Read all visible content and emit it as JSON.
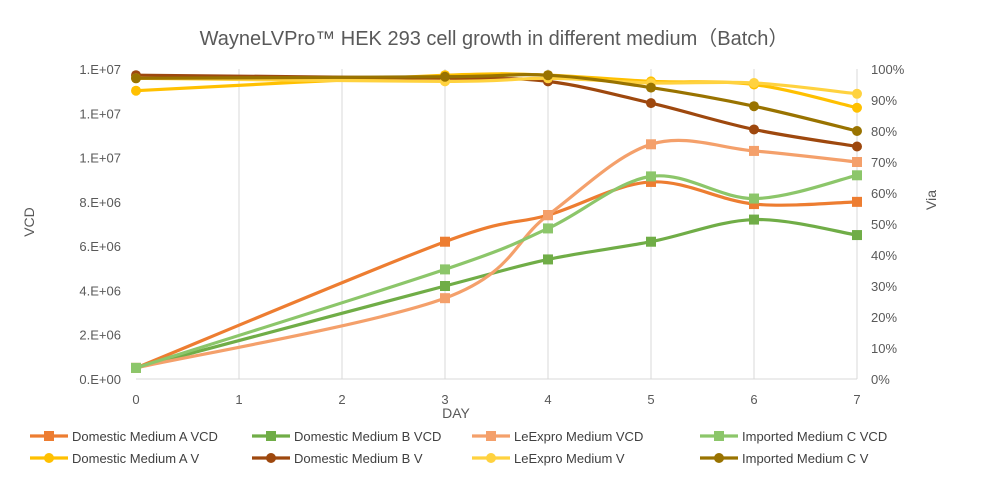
{
  "chart_data": {
    "type": "line",
    "title": "WayneLVPro™ HEK 293 cell growth in different medium（Batch）",
    "xlabel": "DAY",
    "ylabel": "VCD",
    "y2label": "Via",
    "x": [
      0,
      1,
      2,
      3,
      4,
      5,
      6,
      7
    ],
    "x_ticks": [
      "0",
      "1",
      "2",
      "3",
      "4",
      "5",
      "6",
      "7"
    ],
    "xlim": [
      0,
      7
    ],
    "ylim": [
      0,
      14000000
    ],
    "y2lim": [
      0,
      100
    ],
    "y_ticks": [
      {
        "value": 0,
        "label": "0.E+00"
      },
      {
        "value": 2000000,
        "label": "2.E+06"
      },
      {
        "value": 4000000,
        "label": "4.E+06"
      },
      {
        "value": 6000000,
        "label": "6.E+06"
      },
      {
        "value": 8000000,
        "label": "8.E+06"
      },
      {
        "value": 10000000,
        "label": "1.E+07"
      },
      {
        "value": 12000000,
        "label": "1.E+07"
      },
      {
        "value": 14000000,
        "label": "1.E+07"
      }
    ],
    "y2_ticks": [
      {
        "value": 0,
        "label": "0%"
      },
      {
        "value": 10,
        "label": "10%"
      },
      {
        "value": 20,
        "label": "20%"
      },
      {
        "value": 30,
        "label": "30%"
      },
      {
        "value": 40,
        "label": "40%"
      },
      {
        "value": 50,
        "label": "50%"
      },
      {
        "value": 60,
        "label": "60%"
      },
      {
        "value": 70,
        "label": "70%"
      },
      {
        "value": 80,
        "label": "80%"
      },
      {
        "value": 90,
        "label": "90%"
      },
      {
        "value": 100,
        "label": "100%"
      }
    ],
    "grid": "vertical",
    "legend_position": "bottom",
    "series": [
      {
        "name": "Domestic Medium A  VCD",
        "axis": "left",
        "marker": "square",
        "color": "#ED7D31",
        "x": [
          0,
          3,
          4,
          5,
          6,
          7
        ],
        "values": [
          500000,
          6200000,
          7400000,
          8900000,
          7900000,
          8000000
        ]
      },
      {
        "name": "Domestic Medium B  VCD",
        "axis": "left",
        "marker": "square",
        "color": "#70AD47",
        "x": [
          0,
          3,
          4,
          5,
          6,
          7
        ],
        "values": [
          500000,
          4200000,
          5400000,
          6200000,
          7200000,
          6500000
        ]
      },
      {
        "name": "LeExpro Medium VCD",
        "axis": "left",
        "marker": "square",
        "color": "#F4A06B",
        "x": [
          0,
          3,
          4,
          5,
          6,
          7
        ],
        "values": [
          500000,
          3650000,
          7400000,
          10600000,
          10300000,
          9800000
        ]
      },
      {
        "name": "Imported Medium C  VCD",
        "axis": "left",
        "marker": "square",
        "color": "#8CC66A",
        "x": [
          0,
          3,
          4,
          5,
          6,
          7
        ],
        "values": [
          500000,
          4950000,
          6800000,
          9150000,
          8150000,
          9200000
        ]
      },
      {
        "name": "Domestic Medium A  V",
        "axis": "right",
        "marker": "circle",
        "color": "#FFC000",
        "x": [
          0,
          3,
          4,
          5,
          6,
          7
        ],
        "values": [
          93,
          98,
          98,
          96,
          95,
          87.5
        ]
      },
      {
        "name": "Domestic Medium B  V",
        "axis": "right",
        "marker": "circle",
        "color": "#9E480E",
        "x": [
          0,
          3,
          4,
          5,
          6,
          7
        ],
        "values": [
          98,
          97,
          96,
          89,
          80.5,
          75
        ]
      },
      {
        "name": "LeExpro Medium V",
        "axis": "right",
        "marker": "circle",
        "color": "#FFD23F",
        "x": [
          0,
          3,
          4,
          5,
          6,
          7
        ],
        "values": [
          97,
          96,
          97,
          95.5,
          95.5,
          92
        ]
      },
      {
        "name": "Imported Medium C  V",
        "axis": "right",
        "marker": "circle",
        "color": "#997300",
        "x": [
          0,
          3,
          4,
          5,
          6,
          7
        ],
        "values": [
          97,
          97.5,
          98,
          94,
          88,
          80
        ]
      }
    ]
  }
}
